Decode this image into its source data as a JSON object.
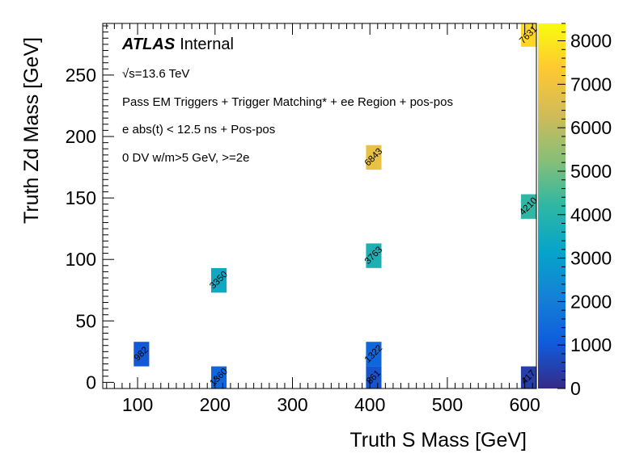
{
  "chart_data": {
    "type": "heatmap",
    "xlabel": "Truth S Mass [GeV]",
    "ylabel": "Truth Zd Mass [GeV]",
    "xlim": [
      55,
      615
    ],
    "ylim": [
      -5,
      292
    ],
    "xticks": [
      100,
      200,
      300,
      400,
      500,
      600
    ],
    "yticks": [
      0,
      50,
      100,
      150,
      200,
      250
    ],
    "colorbar": {
      "min": 0,
      "max": 8400,
      "ticks": [
        0,
        1000,
        2000,
        3000,
        4000,
        5000,
        6000,
        7000,
        8000
      ]
    },
    "colors": [
      "#352a87",
      "#0f5cdd",
      "#1481d6",
      "#06a4ca",
      "#2eb7a4",
      "#87bf77",
      "#d1bb59",
      "#fec832",
      "#f9fb0e"
    ],
    "cells": [
      {
        "x": 105,
        "y": 23,
        "value": 982,
        "label": "982"
      },
      {
        "x": 205,
        "y": 3,
        "value": 1360,
        "label": "1360"
      },
      {
        "x": 205,
        "y": 83,
        "value": 3350,
        "label": "3350"
      },
      {
        "x": 405,
        "y": 3,
        "value": 861,
        "label": "861"
      },
      {
        "x": 405,
        "y": 23,
        "value": 1322,
        "label": "1322"
      },
      {
        "x": 405,
        "y": 103,
        "value": 3763,
        "label": "3763"
      },
      {
        "x": 405,
        "y": 183,
        "value": 6843,
        "label": "6843"
      },
      {
        "x": 605,
        "y": 3,
        "value": 417,
        "label": "417"
      },
      {
        "x": 605,
        "y": 143,
        "value": 4210,
        "label": "4210"
      },
      {
        "x": 605,
        "y": 283,
        "value": 7631,
        "label": "7631"
      }
    ]
  },
  "annotations": {
    "atlas": "ATLAS",
    "internal": "Internal",
    "energy": "√s=13.6 TeV",
    "line1": "Pass EM Triggers + Trigger Matching* + ee Region + pos-pos",
    "line2": "e abs(t) < 12.5 ns + Pos-pos",
    "line3": "0 DV w/m>5 GeV, >=2e"
  }
}
